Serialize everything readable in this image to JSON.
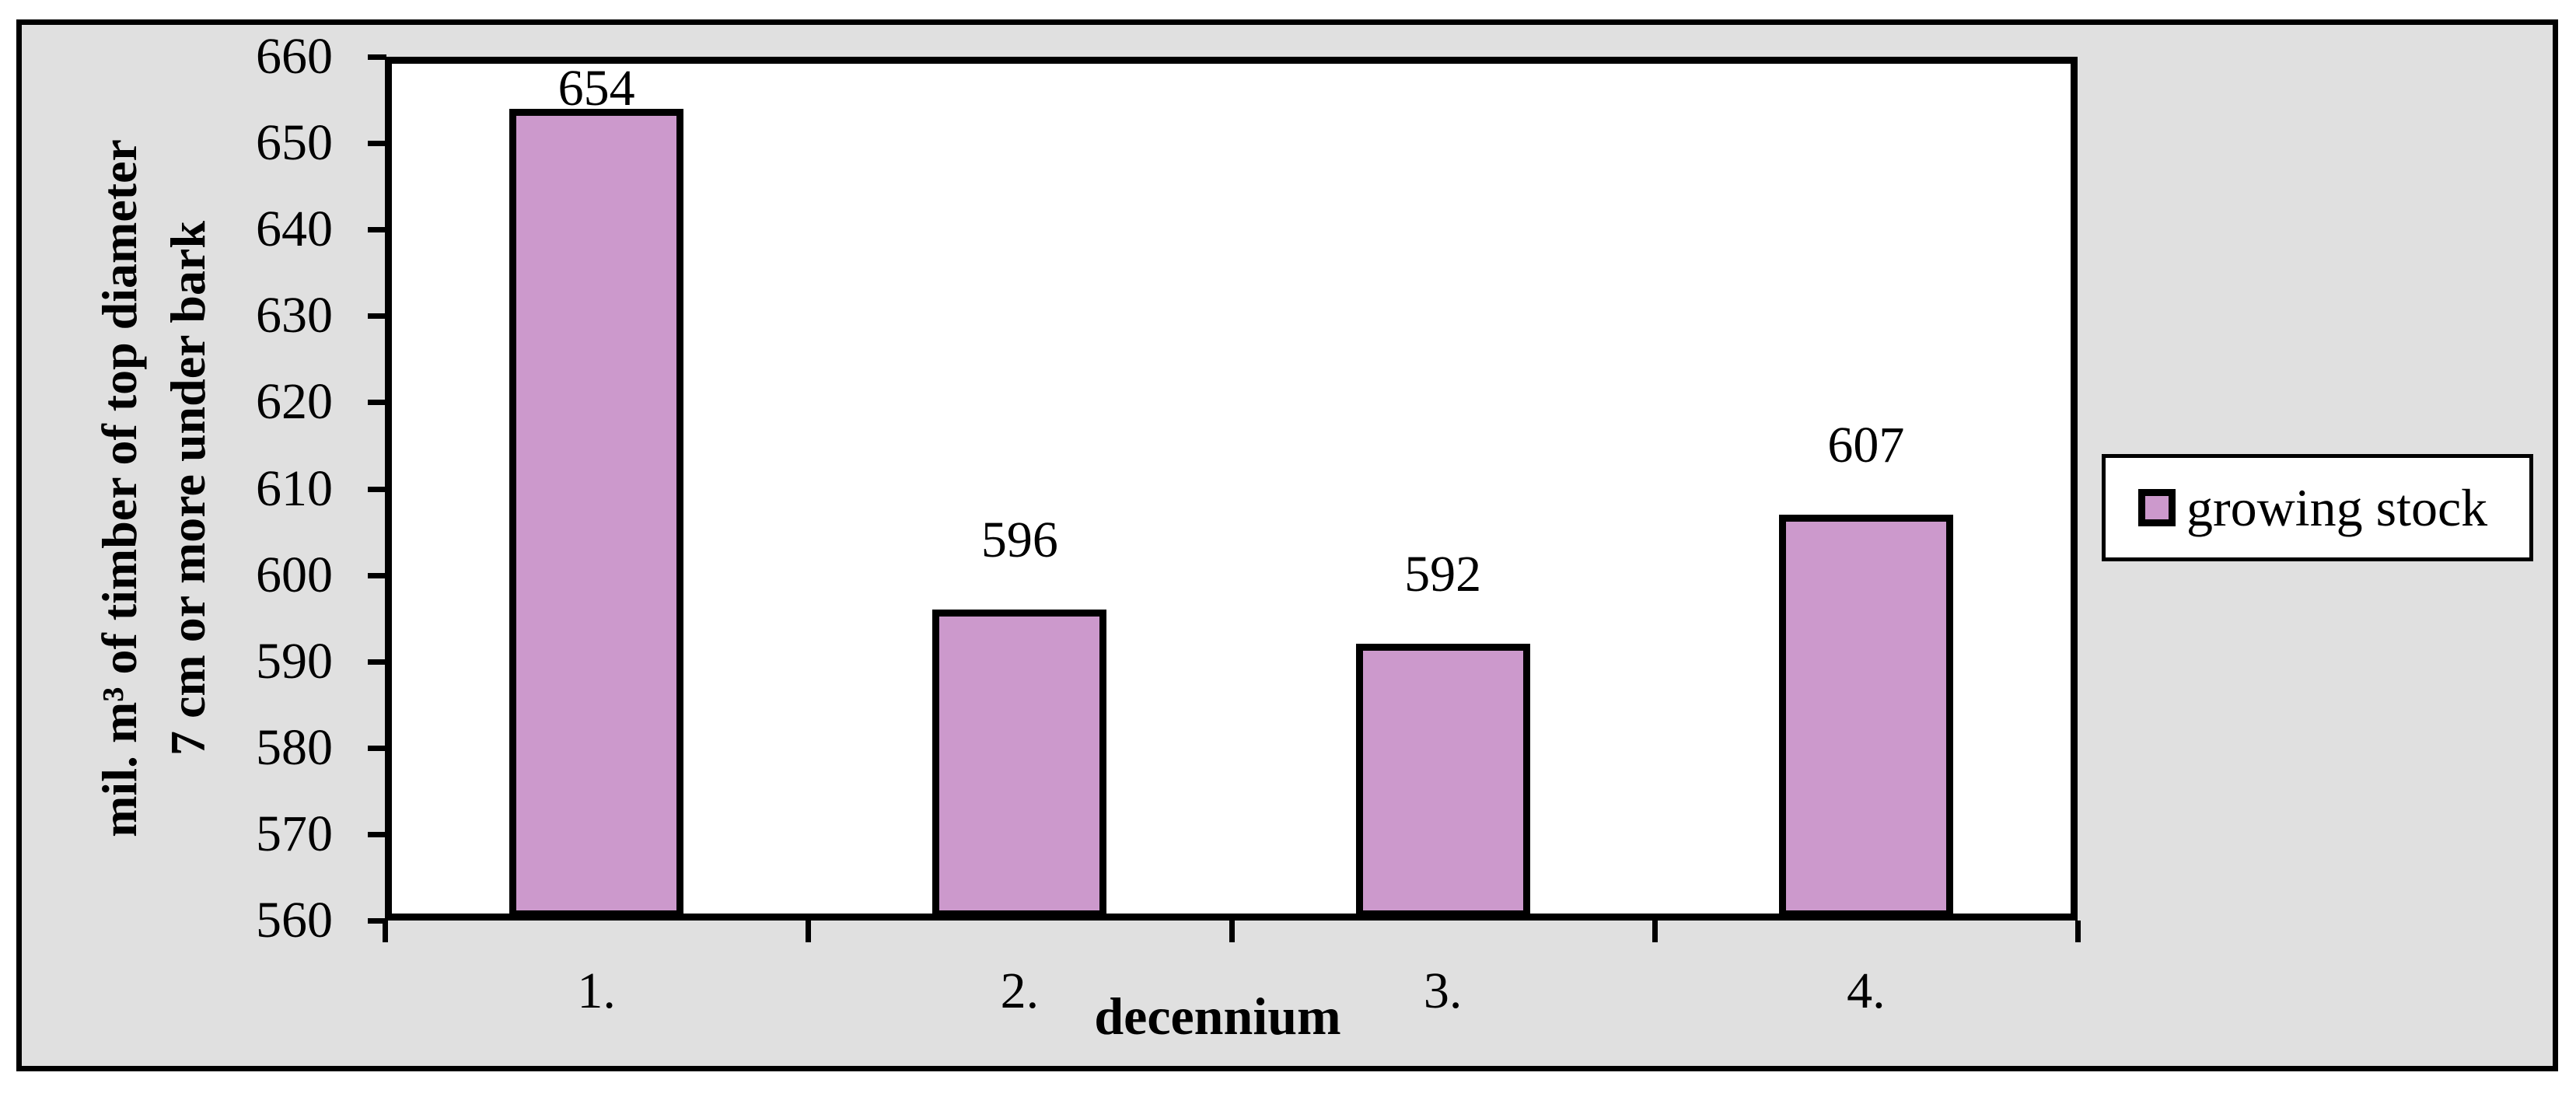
{
  "chart_data": {
    "type": "bar",
    "title": "",
    "categories": [
      "1.",
      "2.",
      "3.",
      "4."
    ],
    "series": [
      {
        "name": "growing stock",
        "values": [
          654,
          596,
          592,
          607
        ]
      }
    ],
    "data_labels": [
      "654",
      "596",
      "592",
      "607"
    ],
    "xlabel": "decennium",
    "ylabel_line1": "mil. m³ of timber of top diameter",
    "ylabel_line2": "7 cm or more under bark",
    "ylim": [
      560,
      660
    ],
    "yticks": [
      560,
      570,
      580,
      590,
      600,
      610,
      620,
      630,
      640,
      650,
      660
    ],
    "grid": false,
    "legend": {
      "label": "growing stock",
      "position": "right-middle"
    },
    "colors": {
      "bar_fill": "#CC99CC",
      "bar_border": "#000000",
      "chart_background": "#E0E0E0",
      "plot_background": "#FFFFFF",
      "axis_line": "#000000",
      "text": "#000000"
    }
  }
}
